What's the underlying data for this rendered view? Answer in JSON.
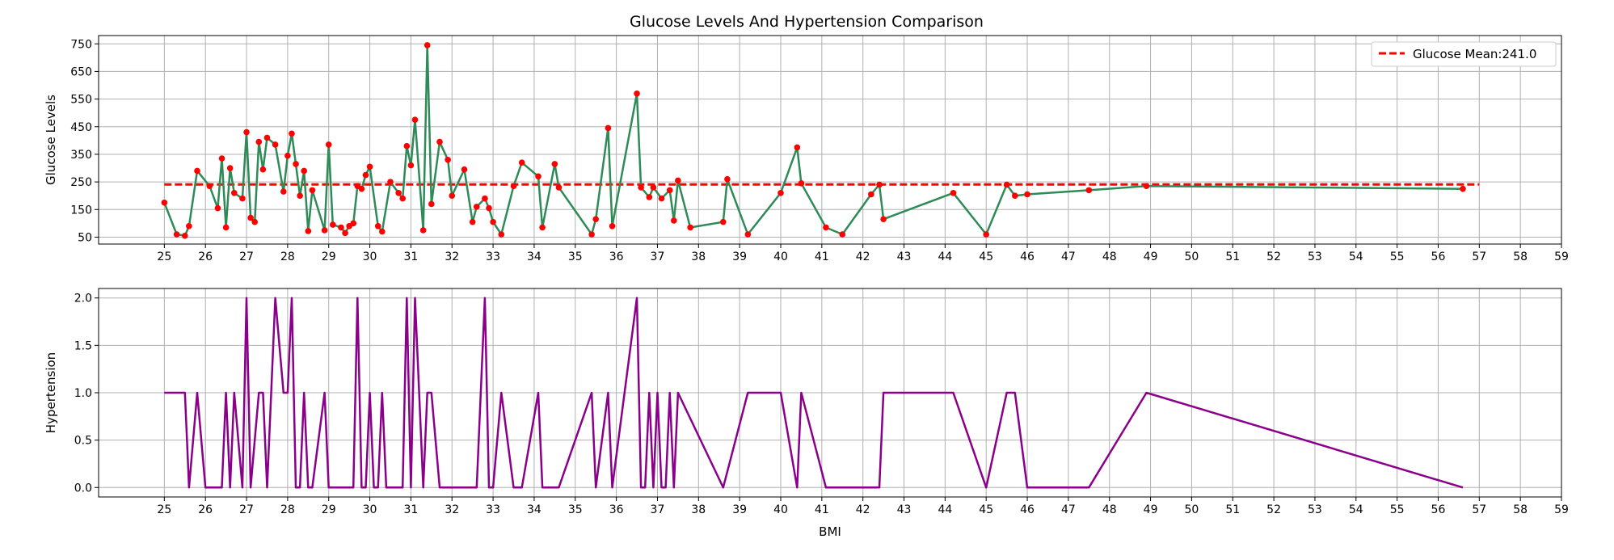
{
  "chart_data": [
    {
      "type": "line",
      "title": "Glucose Levels And Hypertension Comparison",
      "xlabel": "",
      "ylabel": "Glucose Levels",
      "xlim": [
        23.4,
        59
      ],
      "ylim": [
        25,
        780
      ],
      "xticks": [
        25,
        26,
        27,
        28,
        29,
        30,
        31,
        32,
        33,
        34,
        35,
        36,
        37,
        38,
        39,
        40,
        41,
        42,
        43,
        44,
        45,
        46,
        47,
        48,
        49,
        50,
        51,
        52,
        53,
        54,
        55,
        56,
        57,
        58,
        59
      ],
      "yticks": [
        50,
        150,
        250,
        350,
        450,
        550,
        650,
        750
      ],
      "grid": true,
      "legend": {
        "position": "top-right",
        "entries": [
          "Glucose Mean:241.0"
        ]
      },
      "mean_line": {
        "label": "Glucose Mean:241.0",
        "value": 241.0,
        "x_range": [
          25,
          57
        ],
        "color": "#ff0000",
        "style": "dashed"
      },
      "series": [
        {
          "type": "line",
          "color": "#2e8b57",
          "marker_color": "#ff0000",
          "x": [
            25.0,
            25.3,
            25.5,
            25.6,
            25.8,
            26.1,
            26.3,
            26.4,
            26.5,
            26.6,
            26.7,
            26.9,
            27.0,
            27.1,
            27.2,
            27.3,
            27.4,
            27.5,
            27.7,
            27.9,
            28.0,
            28.1,
            28.2,
            28.3,
            28.4,
            28.5,
            28.6,
            28.9,
            29.0,
            29.1,
            29.3,
            29.4,
            29.5,
            29.6,
            29.7,
            29.8,
            29.9,
            30.0,
            30.2,
            30.3,
            30.5,
            30.7,
            30.8,
            30.9,
            31.0,
            31.1,
            31.3,
            31.4,
            31.5,
            31.7,
            31.9,
            32.0,
            32.3,
            32.5,
            32.6,
            32.8,
            32.9,
            33.0,
            33.2,
            33.5,
            33.7,
            34.1,
            34.2,
            34.5,
            34.6,
            35.4,
            35.5,
            35.8,
            35.9,
            36.5,
            36.6,
            36.8,
            36.9,
            37.1,
            37.3,
            37.4,
            37.5,
            37.8,
            38.6,
            38.7,
            39.2,
            40.0,
            40.4,
            40.5,
            41.1,
            41.5,
            42.2,
            42.4,
            42.5,
            44.2,
            45.0,
            45.5,
            45.7,
            46.0,
            47.5,
            48.9,
            56.6
          ],
          "y": [
            175,
            60,
            55,
            90,
            290,
            235,
            155,
            335,
            85,
            300,
            210,
            190,
            430,
            120,
            105,
            395,
            295,
            410,
            385,
            215,
            345,
            425,
            315,
            200,
            290,
            72,
            220,
            75,
            385,
            95,
            85,
            65,
            90,
            100,
            235,
            225,
            275,
            305,
            90,
            70,
            250,
            210,
            190,
            380,
            310,
            475,
            75,
            745,
            170,
            395,
            330,
            200,
            295,
            105,
            160,
            190,
            155,
            105,
            60,
            235,
            320,
            270,
            85,
            315,
            230,
            60,
            115,
            445,
            90,
            570,
            230,
            195,
            230,
            190,
            220,
            110,
            255,
            85,
            105,
            260,
            60,
            210,
            375,
            245,
            85,
            60,
            205,
            240,
            115,
            210,
            60,
            240,
            200,
            205,
            220,
            235,
            225
          ]
        }
      ]
    },
    {
      "type": "line",
      "title": "",
      "xlabel": "BMI",
      "ylabel": "Hypertension",
      "xlim": [
        23.4,
        59
      ],
      "ylim": [
        -0.1,
        2.1
      ],
      "xticks": [
        25,
        26,
        27,
        28,
        29,
        30,
        31,
        32,
        33,
        34,
        35,
        36,
        37,
        38,
        39,
        40,
        41,
        42,
        43,
        44,
        45,
        46,
        47,
        48,
        49,
        50,
        51,
        52,
        53,
        54,
        55,
        56,
        57,
        58,
        59
      ],
      "yticks": [
        0.0,
        0.5,
        1.0,
        1.5,
        2.0
      ],
      "grid": true,
      "series": [
        {
          "type": "line",
          "color": "#8b008b",
          "x": [
            25.0,
            25.5,
            25.6,
            25.8,
            26.0,
            26.4,
            26.5,
            26.6,
            26.7,
            26.9,
            27.0,
            27.1,
            27.3,
            27.4,
            27.5,
            27.7,
            27.9,
            28.0,
            28.1,
            28.2,
            28.3,
            28.4,
            28.5,
            28.6,
            28.9,
            29.0,
            29.6,
            29.7,
            29.8,
            29.9,
            30.0,
            30.1,
            30.2,
            30.3,
            30.4,
            30.8,
            30.9,
            31.0,
            31.1,
            31.3,
            31.4,
            31.5,
            31.7,
            32.6,
            32.8,
            32.9,
            33.0,
            33.2,
            33.5,
            33.7,
            34.1,
            34.2,
            34.5,
            34.6,
            35.4,
            35.5,
            35.8,
            35.9,
            36.5,
            36.6,
            36.7,
            36.8,
            36.9,
            37.0,
            37.1,
            37.2,
            37.3,
            37.4,
            37.5,
            38.6,
            39.2,
            40.0,
            40.4,
            40.5,
            41.1,
            42.4,
            42.5,
            44.2,
            45.0,
            45.5,
            45.7,
            46.0,
            47.5,
            48.9,
            56.6
          ],
          "y": [
            1,
            1,
            0,
            1,
            0,
            0,
            1,
            0,
            1,
            0,
            2,
            0,
            1,
            1,
            0,
            2,
            1,
            1,
            2,
            0,
            0,
            1,
            0,
            0,
            1,
            0,
            0,
            2,
            0,
            0,
            1,
            0,
            0,
            1,
            0,
            0,
            2,
            0,
            2,
            0,
            1,
            1,
            0,
            0,
            2,
            0,
            0,
            1,
            0,
            0,
            1,
            0,
            0,
            0,
            1,
            0,
            1,
            0,
            2,
            0,
            0,
            1,
            0,
            1,
            0,
            0,
            1,
            0,
            1,
            0,
            1,
            1,
            0,
            1,
            0,
            0,
            1,
            1,
            0,
            1,
            1,
            0,
            0,
            1,
            0
          ]
        }
      ]
    }
  ]
}
